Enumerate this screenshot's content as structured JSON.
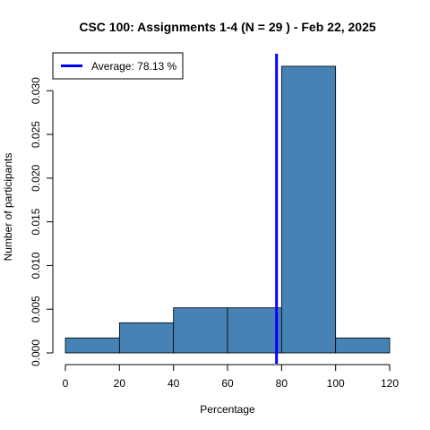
{
  "chart_data": {
    "type": "bar",
    "title": "CSC 100: Assignments 1-4 (N = 29 ) - Feb 22, 2025",
    "xlabel": "Percentage",
    "ylabel": "Number of participants",
    "bins": [
      {
        "start": 0,
        "end": 20,
        "value": 0.00172
      },
      {
        "start": 20,
        "end": 40,
        "value": 0.00345
      },
      {
        "start": 40,
        "end": 60,
        "value": 0.00517
      },
      {
        "start": 60,
        "end": 80,
        "value": 0.00517
      },
      {
        "start": 80,
        "end": 100,
        "value": 0.0328
      },
      {
        "start": 100,
        "end": 120,
        "value": 0.00172
      }
    ],
    "xlim": [
      0,
      120
    ],
    "ylim": [
      0,
      0.033
    ],
    "x_ticks": [
      "0",
      "20",
      "40",
      "60",
      "80",
      "100",
      "120"
    ],
    "x_tick_values": [
      0,
      20,
      40,
      60,
      80,
      100,
      120
    ],
    "y_ticks": [
      "0.000",
      "0.005",
      "0.010",
      "0.015",
      "0.020",
      "0.025",
      "0.030"
    ],
    "y_tick_values": [
      0,
      0.005,
      0.01,
      0.015,
      0.02,
      0.025,
      0.03
    ],
    "average": {
      "value": 78.13,
      "label": "Average: 78.13 %",
      "color": "#0000ff"
    },
    "bar_color": "#4682b4",
    "legend_position": "top-left",
    "grid": false
  }
}
